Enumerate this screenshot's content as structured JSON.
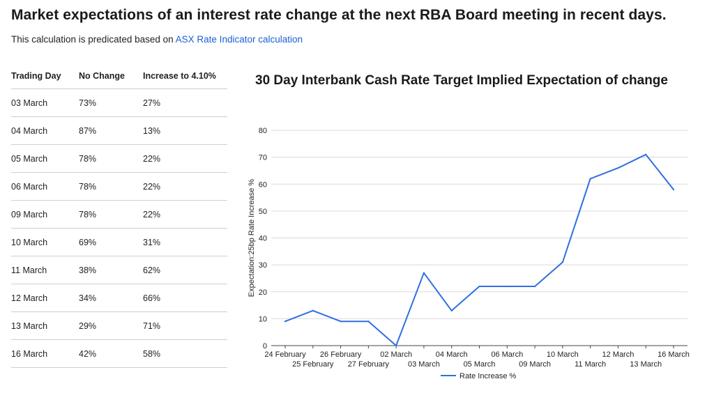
{
  "page": {
    "title": "Market expectations of an interest rate change at the next RBA Board meeting in recent days.",
    "subtitle_prefix": "This calculation is predicated based on ",
    "subtitle_link": "ASX Rate Indicator calculation"
  },
  "table": {
    "headers": [
      "Trading Day",
      "No Change",
      "Increase to 4.10%"
    ],
    "rows": [
      [
        "03 March",
        "73%",
        "27%"
      ],
      [
        "04 March",
        "87%",
        "13%"
      ],
      [
        "05 March",
        "78%",
        "22%"
      ],
      [
        "06 March",
        "78%",
        "22%"
      ],
      [
        "09 March",
        "78%",
        "22%"
      ],
      [
        "10 March",
        "69%",
        "31%"
      ],
      [
        "11 March",
        "38%",
        "62%"
      ],
      [
        "12 March",
        "34%",
        "66%"
      ],
      [
        "13 March",
        "29%",
        "71%"
      ],
      [
        "16 March",
        "42%",
        "58%"
      ]
    ]
  },
  "chart_data": {
    "type": "line",
    "title": "30 Day Interbank Cash Rate Target Implied Expectation of change",
    "xlabel": "",
    "ylabel": "Expectation:25bp Rate Increase %",
    "ylim": [
      0,
      80
    ],
    "yticks": [
      0,
      10,
      20,
      30,
      40,
      50,
      60,
      70,
      80
    ],
    "grid": true,
    "legend_position": "bottom",
    "line_color": "#2f6fe0",
    "categories": [
      "24 February",
      "25 February",
      "26 February",
      "27 February",
      "02 March",
      "03 March",
      "04 March",
      "05 March",
      "06 March",
      "09 March",
      "10 March",
      "11 March",
      "12 March",
      "13 March",
      "16 March"
    ],
    "series": [
      {
        "name": "Rate Increase %",
        "values": [
          9,
          13,
          9,
          9,
          0,
          27,
          13,
          22,
          22,
          22,
          31,
          62,
          66,
          71,
          58
        ]
      }
    ]
  }
}
